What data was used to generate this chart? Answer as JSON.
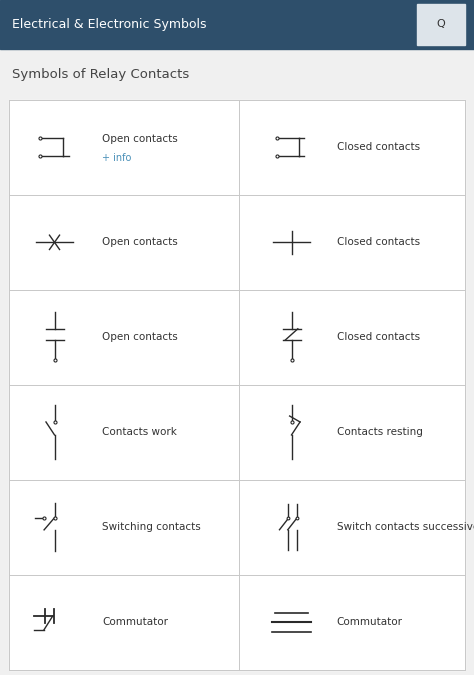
{
  "header_color": "#2e4f6b",
  "header_text": "Electrical & Electronic Symbols",
  "header_text_color": "#ffffff",
  "subtitle": "Symbols of Relay Contacts",
  "subtitle_color": "#444444",
  "background_color": "#f0f0f0",
  "cell_background": "#ffffff",
  "grid_color": "#c8c8c8",
  "label_color": "#333333",
  "info_color": "#4a90b8",
  "symbol_color": "#2a2a2a",
  "rows": [
    {
      "left_label": "Open contacts",
      "left_info": "+ info",
      "right_label": "Closed contacts"
    },
    {
      "left_label": "Open contacts",
      "left_info": "",
      "right_label": "Closed contacts"
    },
    {
      "left_label": "Open contacts",
      "left_info": "",
      "right_label": "Closed contacts"
    },
    {
      "left_label": "Contacts work",
      "left_info": "",
      "right_label": "Contacts resting"
    },
    {
      "left_label": "Switching contacts",
      "left_info": "",
      "right_label": "Switch contacts successive"
    },
    {
      "left_label": "Commutator",
      "left_info": "",
      "right_label": "Commutator"
    }
  ],
  "fig_width": 4.74,
  "fig_height": 6.75,
  "dpi": 100
}
